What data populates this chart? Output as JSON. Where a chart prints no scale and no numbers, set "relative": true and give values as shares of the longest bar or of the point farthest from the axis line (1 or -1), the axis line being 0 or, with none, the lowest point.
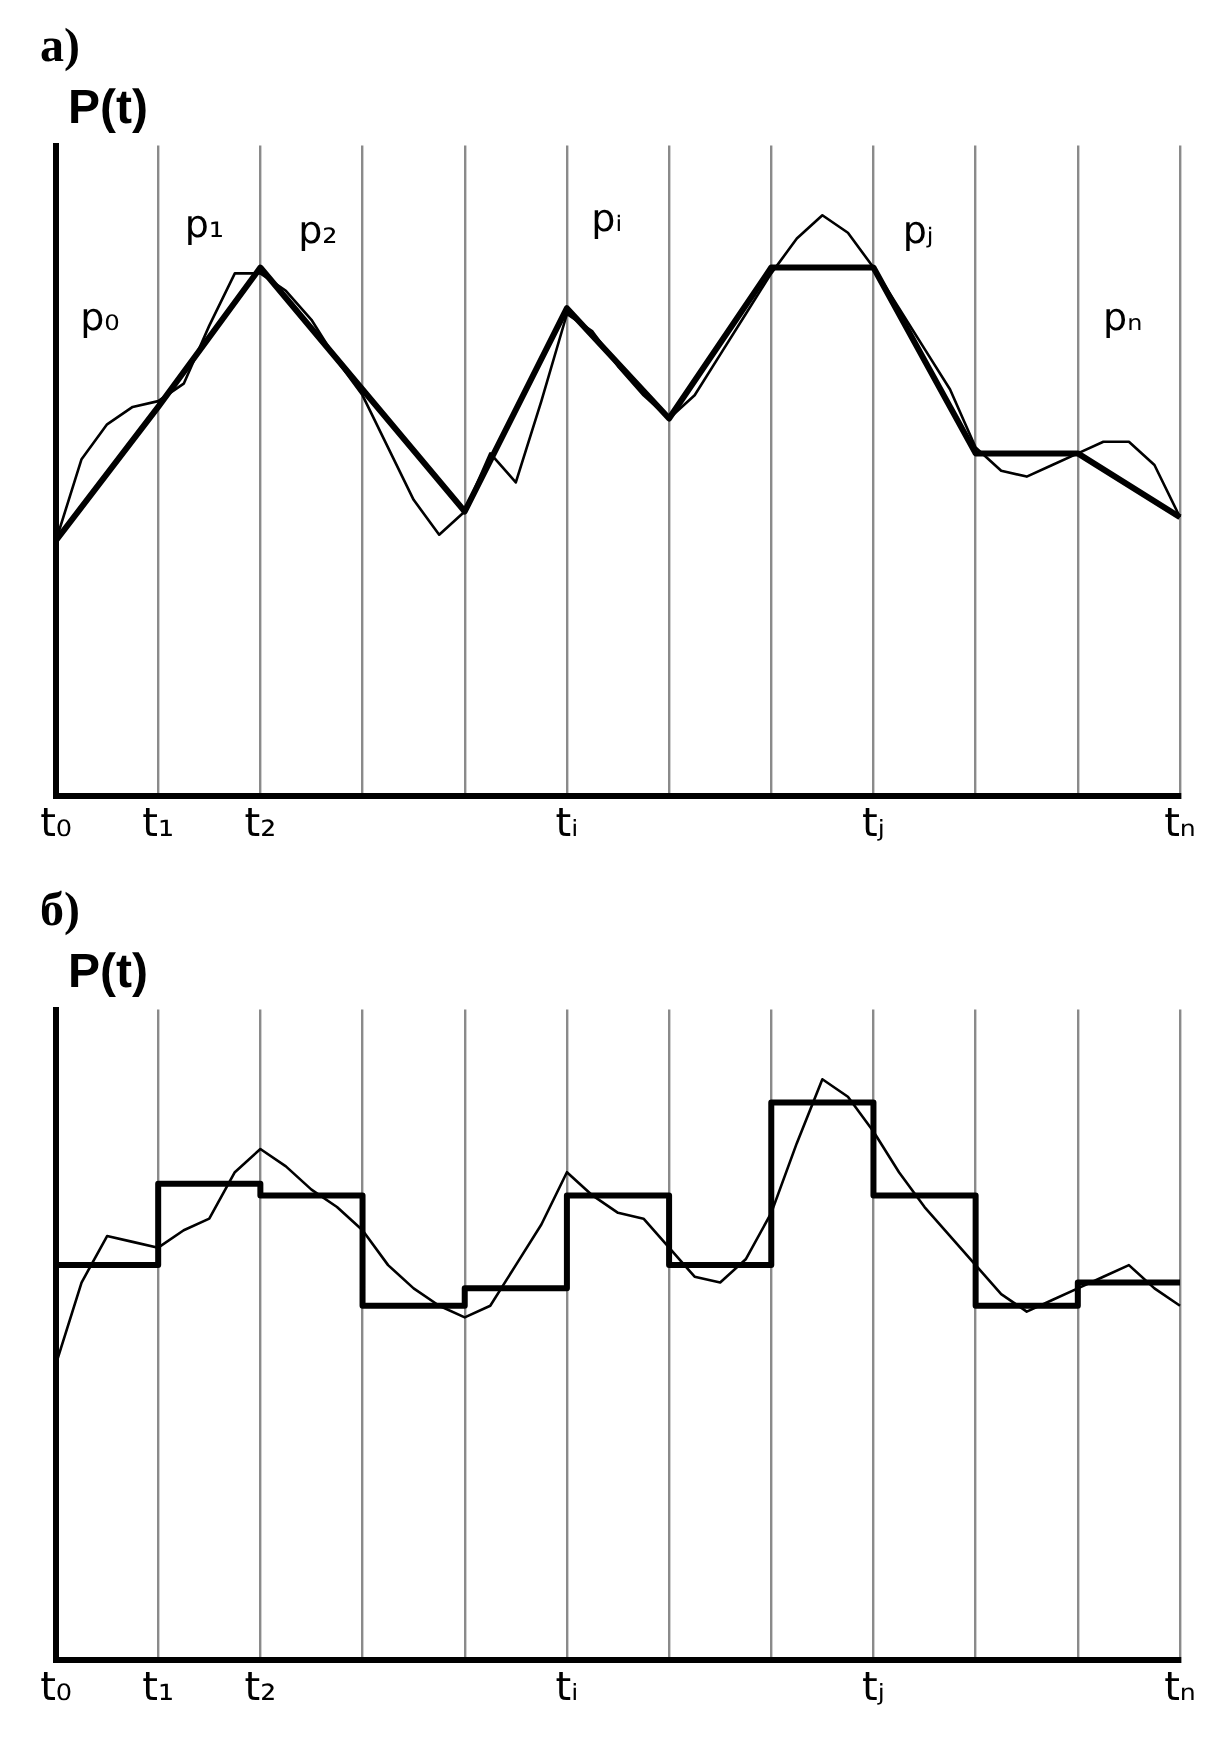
{
  "chart_data": [
    {
      "type": "line",
      "title": "а)",
      "ylabel": "P(t)",
      "relative": true,
      "categories": [
        "t₀",
        null,
        null,
        null,
        "t₁",
        null,
        null,
        null,
        "t₂",
        null,
        null,
        null,
        null,
        null,
        null,
        null,
        null,
        null,
        null,
        null,
        "tᵢ",
        null,
        null,
        null,
        null,
        null,
        null,
        null,
        null,
        null,
        null,
        null,
        "tⱼ",
        null,
        null,
        null,
        null,
        null,
        null,
        null,
        null,
        null,
        null,
        null,
        "tₙ"
      ],
      "grid": "x",
      "legend": false,
      "marker": "none",
      "line_style": "solid",
      "series": [
        {
          "color": "#000000",
          "values": [
            0.44,
            0.58,
            0.64,
            0.67,
            0.68,
            0.71,
            0.81,
            0.9,
            0.9,
            0.87,
            0.82,
            0.75,
            0.69,
            0.6,
            0.51,
            0.45,
            0.49,
            0.59,
            0.54,
            0.68,
            0.83,
            0.8,
            0.74,
            0.69,
            0.65,
            0.69,
            0.76,
            0.83,
            0.9,
            0.96,
            1,
            0.97,
            0.91,
            0.84,
            0.77,
            0.7,
            0.6,
            0.56,
            0.55,
            0.57,
            0.59,
            0.61,
            0.61,
            0.57,
            0.48
          ]
        },
        {
          "color": "#000000",
          "values": [
            0.44,
            null,
            null,
            null,
            0.67,
            null,
            null,
            null,
            0.91,
            null,
            null,
            null,
            0.7,
            null,
            null,
            null,
            0.49,
            null,
            null,
            null,
            0.84,
            null,
            null,
            null,
            0.65,
            null,
            null,
            null,
            0.91,
            null,
            null,
            null,
            0.91,
            null,
            null,
            null,
            0.59,
            null,
            null,
            null,
            0.59,
            null,
            null,
            null,
            0.48
          ]
        }
      ],
      "annotations": [
        "p₀",
        "p₁",
        "p₂",
        "pᵢ",
        "pⱼ",
        "pₙ"
      ]
    },
    {
      "type": "line",
      "title": "б)",
      "ylabel": "P(t)",
      "relative": true,
      "categories": [
        "t₀",
        null,
        null,
        null,
        "t₁",
        null,
        null,
        null,
        "t₂",
        null,
        null,
        null,
        null,
        null,
        null,
        null,
        null,
        null,
        null,
        null,
        "tᵢ",
        null,
        null,
        null,
        null,
        null,
        null,
        null,
        null,
        null,
        null,
        null,
        "tⱼ",
        null,
        null,
        null,
        null,
        null,
        null,
        null,
        null,
        null,
        null,
        null,
        "tₙ"
      ],
      "grid": "x",
      "legend": false,
      "marker": "none",
      "line_style": "solid",
      "series": [
        {
          "color": "#000000",
          "values": [
            0.51,
            0.65,
            0.73,
            0.72,
            0.71,
            0.74,
            0.76,
            0.84,
            0.88,
            0.85,
            0.81,
            0.78,
            0.74,
            0.68,
            0.64,
            0.61,
            0.59,
            0.61,
            0.68,
            0.75,
            0.84,
            0.8,
            0.77,
            0.76,
            0.71,
            0.66,
            0.65,
            0.69,
            0.77,
            0.89,
            1,
            0.97,
            0.91,
            0.84,
            0.78,
            0.73,
            0.68,
            0.63,
            0.6,
            0.62,
            0.64,
            0.66,
            0.68,
            0.64,
            0.61
          ]
        },
        {
          "type": "step",
          "color": "#000000",
          "values": [
            0.68,
            null,
            null,
            null,
            0.82,
            null,
            null,
            null,
            0.8,
            null,
            null,
            null,
            0.61,
            null,
            null,
            null,
            0.64,
            null,
            null,
            null,
            0.8,
            null,
            null,
            null,
            0.68,
            null,
            null,
            null,
            0.96,
            null,
            null,
            null,
            0.8,
            null,
            null,
            null,
            0.61,
            null,
            null,
            null,
            0.65,
            null,
            null,
            null,
            0.65
          ]
        }
      ]
    }
  ]
}
